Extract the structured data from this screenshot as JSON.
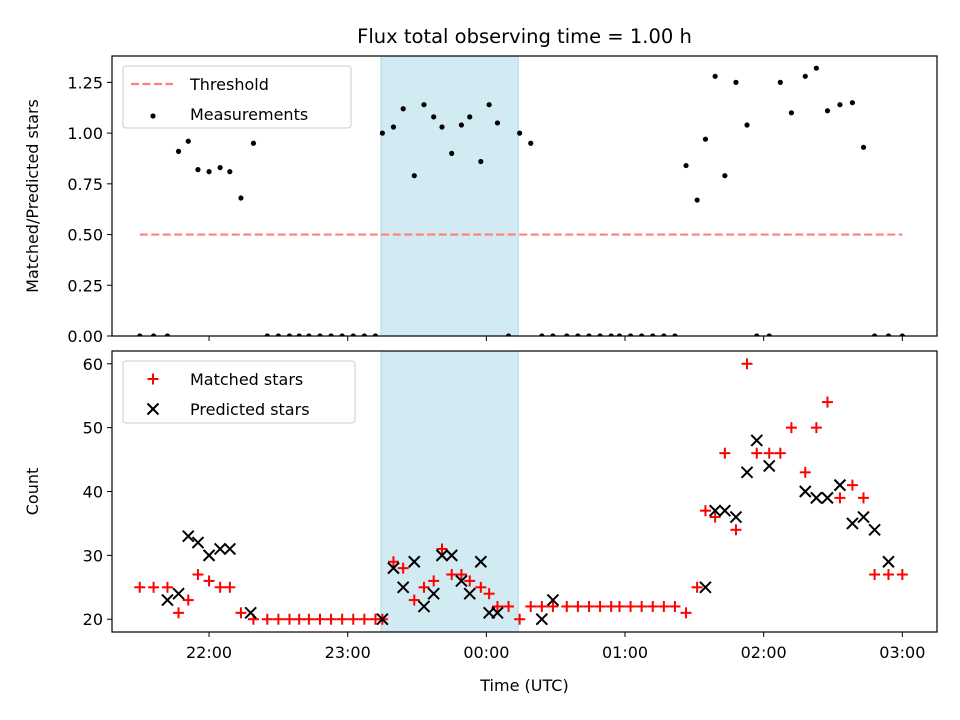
{
  "chart_data": {
    "title": "Flux total observing time = 1.00 h",
    "xlabel": "Time (UTC)",
    "x_ticks": [
      "22:00",
      "23:00",
      "00:00",
      "01:00",
      "02:00",
      "03:00"
    ],
    "x_tick_hours": [
      22,
      23,
      24,
      25,
      26,
      27
    ],
    "xlim": [
      21.3,
      27.25
    ],
    "shaded_span": [
      "23:15",
      "00:15"
    ],
    "shaded_span_hours": [
      23.24,
      24.23
    ],
    "shade_color": "#add8e6",
    "panels": [
      {
        "type": "line+scatter",
        "ylabel": "Matched/Predicted stars",
        "ylim": [
          0,
          1.38
        ],
        "y_ticks": [
          "0.00",
          "0.25",
          "0.50",
          "0.75",
          "1.00",
          "1.25"
        ],
        "y_tick_values": [
          0,
          0.25,
          0.5,
          0.75,
          1.0,
          1.25
        ],
        "legend_position": "upper-left",
        "series": [
          {
            "name": "Threshold",
            "kind": "dashed-line",
            "color": "#ff7f7f",
            "x": [
              21.5,
              27.0
            ],
            "y": [
              0.5,
              0.5
            ]
          },
          {
            "name": "Measurements",
            "kind": "points",
            "color": "#000000",
            "x": [
              21.5,
              21.6,
              21.7,
              21.78,
              21.85,
              21.92,
              22.0,
              22.08,
              22.15,
              22.23,
              22.32,
              22.42,
              22.5,
              22.58,
              22.65,
              22.72,
              22.8,
              22.88,
              22.96,
              23.04,
              23.12,
              23.2,
              23.25,
              23.33,
              23.4,
              23.48,
              23.55,
              23.62,
              23.68,
              23.75,
              23.82,
              23.88,
              23.96,
              24.02,
              24.08,
              24.16,
              24.24,
              24.32,
              24.4,
              24.48,
              24.58,
              24.66,
              24.74,
              24.82,
              24.9,
              24.96,
              25.04,
              25.12,
              25.2,
              25.28,
              25.36,
              25.44,
              25.52,
              25.58,
              25.65,
              25.72,
              25.8,
              25.88,
              25.95,
              26.04,
              26.12,
              26.2,
              26.3,
              26.38,
              26.46,
              26.55,
              26.64,
              26.72,
              26.8,
              26.9,
              27.0
            ],
            "y": [
              0,
              0,
              0,
              0.91,
              0.96,
              0.82,
              0.81,
              0.83,
              0.81,
              0.68,
              0.95,
              0,
              0,
              0,
              0,
              0,
              0,
              0,
              0,
              0,
              0,
              0,
              1.0,
              1.03,
              1.12,
              0.79,
              1.14,
              1.08,
              1.03,
              0.9,
              1.04,
              1.08,
              0.86,
              1.14,
              1.05,
              0,
              1.0,
              0.95,
              0,
              0,
              0,
              0,
              0,
              0,
              0,
              0,
              0,
              0,
              0,
              0,
              0,
              0.84,
              0.67,
              0.97,
              1.28,
              0.79,
              1.25,
              1.04,
              0,
              0,
              1.25,
              1.1,
              1.28,
              1.32,
              1.11,
              1.14,
              1.15,
              0.93,
              0,
              0,
              0
            ]
          }
        ]
      },
      {
        "type": "scatter",
        "ylabel": "Count",
        "ylim": [
          18,
          62
        ],
        "y_ticks": [
          "20",
          "30",
          "40",
          "50",
          "60"
        ],
        "y_tick_values": [
          20,
          30,
          40,
          50,
          60
        ],
        "legend_position": "upper-left",
        "series": [
          {
            "name": "Matched stars",
            "marker": "plus",
            "color": "#ff0000",
            "x": [
              21.5,
              21.6,
              21.7,
              21.78,
              21.85,
              21.92,
              22.0,
              22.08,
              22.15,
              22.23,
              22.32,
              22.42,
              22.5,
              22.58,
              22.65,
              22.72,
              22.8,
              22.88,
              22.96,
              23.04,
              23.12,
              23.2,
              23.25,
              23.33,
              23.4,
              23.48,
              23.55,
              23.62,
              23.68,
              23.75,
              23.82,
              23.88,
              23.96,
              24.02,
              24.08,
              24.16,
              24.24,
              24.32,
              24.4,
              24.48,
              24.58,
              24.66,
              24.74,
              24.82,
              24.9,
              24.96,
              25.04,
              25.12,
              25.2,
              25.28,
              25.36,
              25.44,
              25.52,
              25.58,
              25.65,
              25.72,
              25.8,
              25.88,
              25.95,
              26.04,
              26.12,
              26.2,
              26.3,
              26.38,
              26.46,
              26.55,
              26.64,
              26.72,
              26.8,
              26.9,
              27.0
            ],
            "y": [
              25,
              25,
              25,
              21,
              23,
              27,
              26,
              25,
              25,
              21,
              20,
              20,
              20,
              20,
              20,
              20,
              20,
              20,
              20,
              20,
              20,
              20,
              20,
              29,
              28,
              23,
              25,
              26,
              31,
              27,
              27,
              26,
              25,
              24,
              22,
              22,
              20,
              22,
              22,
              22,
              22,
              22,
              22,
              22,
              22,
              22,
              22,
              22,
              22,
              22,
              22,
              21,
              25,
              37,
              36,
              46,
              34,
              60,
              46,
              46,
              46,
              50,
              43,
              50,
              54,
              39,
              41,
              39,
              27,
              27,
              27
            ]
          },
          {
            "name": "Predicted stars",
            "marker": "x",
            "color": "#000000",
            "x": [
              21.7,
              21.78,
              21.85,
              21.92,
              22.0,
              22.08,
              22.15,
              22.3,
              23.25,
              23.33,
              23.4,
              23.48,
              23.55,
              23.62,
              23.68,
              23.75,
              23.82,
              23.88,
              23.96,
              24.02,
              24.08,
              24.4,
              24.48,
              25.58,
              25.65,
              25.72,
              25.8,
              25.88,
              25.95,
              26.04,
              26.3,
              26.38,
              26.46,
              26.55,
              26.64,
              26.72,
              26.8,
              26.9
            ],
            "y": [
              23,
              24,
              33,
              32,
              30,
              31,
              31,
              21,
              20,
              28,
              25,
              29,
              22,
              24,
              30,
              30,
              26,
              24,
              29,
              21,
              21,
              20,
              23,
              25,
              37,
              37,
              36,
              43,
              48,
              44,
              40,
              39,
              39,
              41,
              35,
              36,
              34,
              29
            ]
          }
        ]
      }
    ]
  }
}
